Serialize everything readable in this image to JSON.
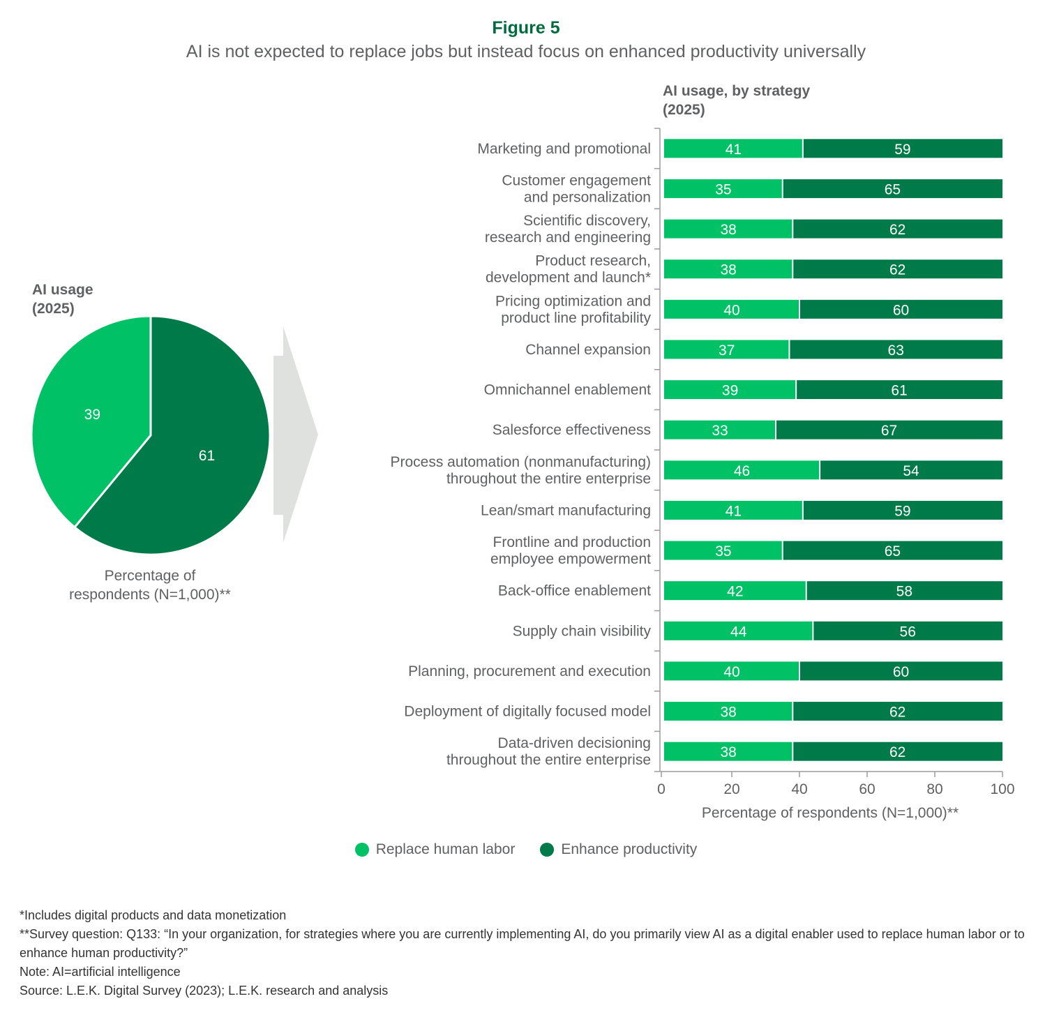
{
  "header": {
    "figure_label": "Figure 5",
    "subtitle": "AI is not expected to replace jobs but instead focus on enhanced productivity universally"
  },
  "colors": {
    "replace": "#00c165",
    "enhance": "#007a48",
    "arrow": "#dfe1df",
    "text": "#5f6062"
  },
  "chart_data": [
    {
      "type": "pie",
      "title_lines": [
        "AI usage",
        "(2025)"
      ],
      "label_lines": [
        "Percentage of",
        "respondents (N=1,000)**"
      ],
      "slices": [
        {
          "name": "Replace human labor",
          "value": 39
        },
        {
          "name": "Enhance productivity",
          "value": 61
        }
      ]
    },
    {
      "type": "bar",
      "orientation": "horizontal",
      "stacked": true,
      "title_lines": [
        "AI usage, by strategy",
        "(2025)"
      ],
      "xlabel": "Percentage of respondents (N=1,000)**",
      "xlim": [
        0,
        100
      ],
      "xticks": [
        0,
        20,
        40,
        60,
        80,
        100
      ],
      "categories": [
        [
          "Marketing and promotional"
        ],
        [
          "Customer engagement",
          "and personalization"
        ],
        [
          "Scientific discovery,",
          "research and engineering"
        ],
        [
          "Product research,",
          "development and launch*"
        ],
        [
          "Pricing optimization and",
          "product line profitability"
        ],
        [
          "Channel expansion"
        ],
        [
          "Omnichannel enablement"
        ],
        [
          "Salesforce effectiveness"
        ],
        [
          "Process automation (nonmanufacturing)",
          "throughout the entire enterprise"
        ],
        [
          "Lean/smart manufacturing"
        ],
        [
          "Frontline and production",
          "employee empowerment"
        ],
        [
          "Back-office enablement"
        ],
        [
          "Supply chain visibility"
        ],
        [
          "Planning, procurement and execution"
        ],
        [
          "Deployment of digitally focused model"
        ],
        [
          "Data-driven decisioning",
          "throughout the entire enterprise"
        ]
      ],
      "series": [
        {
          "name": "Replace human labor",
          "values": [
            41,
            35,
            38,
            38,
            40,
            37,
            39,
            33,
            46,
            41,
            35,
            42,
            44,
            40,
            38,
            38
          ]
        },
        {
          "name": "Enhance productivity",
          "values": [
            59,
            65,
            62,
            62,
            60,
            63,
            61,
            67,
            54,
            59,
            65,
            58,
            56,
            60,
            62,
            62
          ]
        }
      ],
      "legend_position": "bottom"
    }
  ],
  "legend": [
    {
      "label": "Replace human labor"
    },
    {
      "label": "Enhance productivity"
    }
  ],
  "footnotes": [
    "*Includes digital products and data monetization",
    "**Survey question: Q133: “In your organization, for strategies where you are currently implementing AI, do you primarily view AI as a digital enabler used to replace human labor or to enhance human productivity?”",
    "Note: AI=artificial intelligence",
    "Source: L.E.K. Digital Survey (2023); L.E.K. research and analysis"
  ]
}
